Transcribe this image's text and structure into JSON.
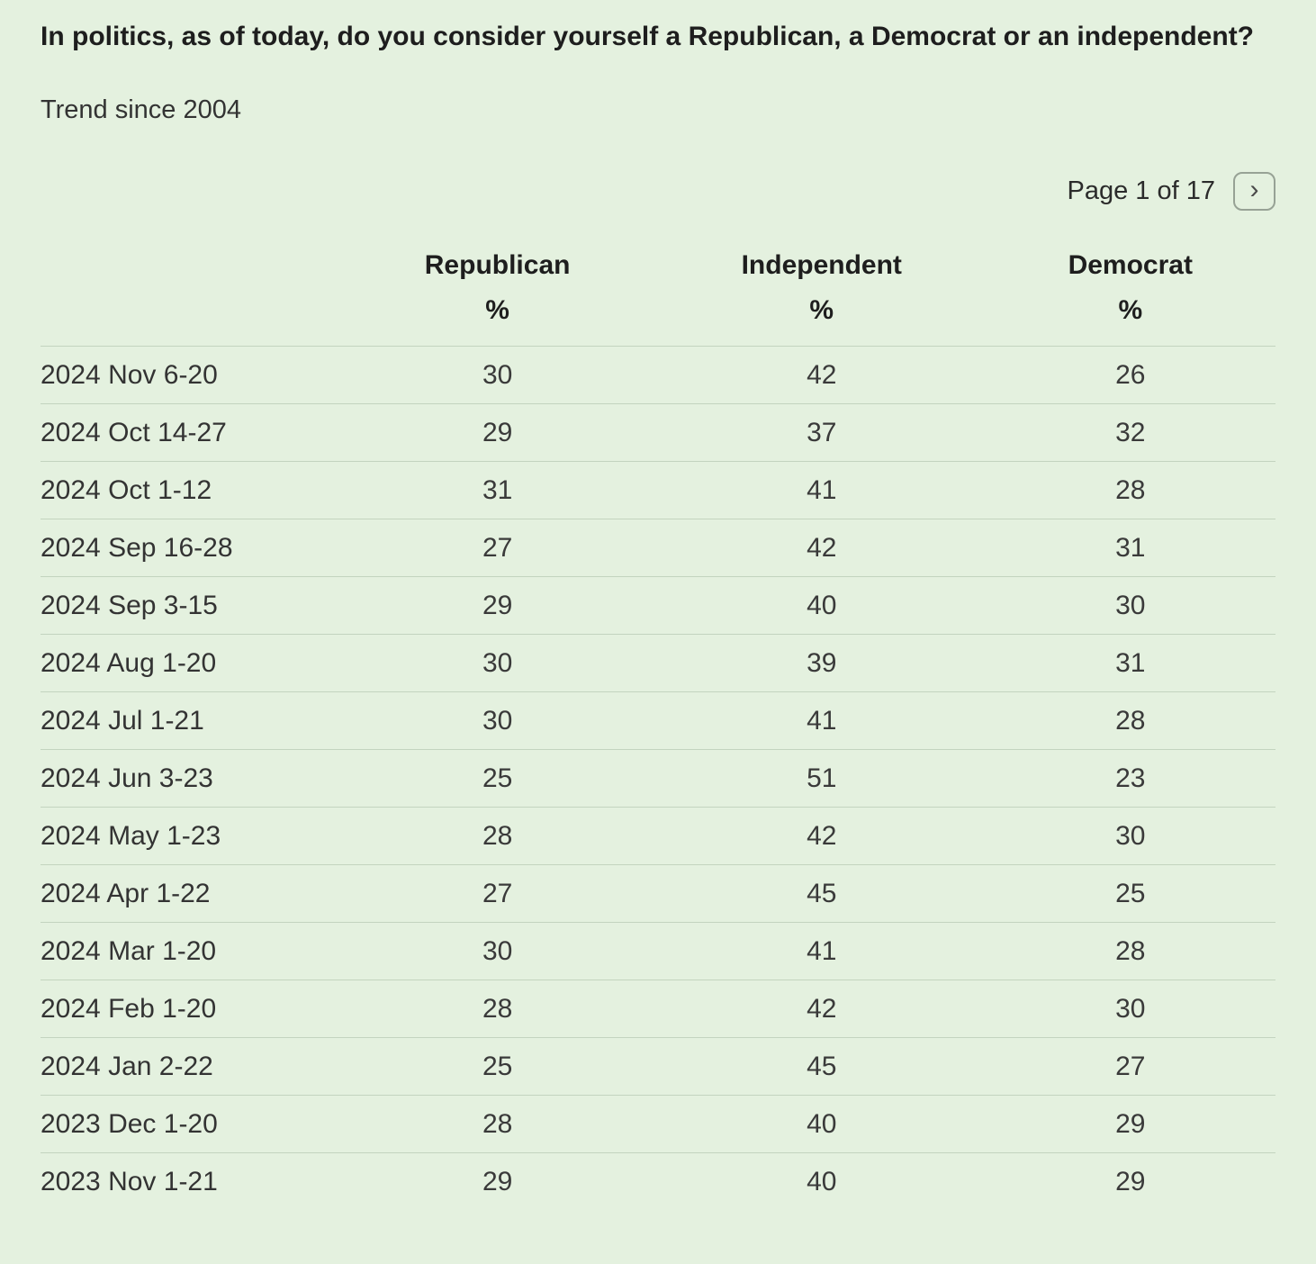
{
  "header": {
    "title": "In politics, as of today, do you consider yourself a Republican, a Democrat or an independent?",
    "subtitle": "Trend since 2004"
  },
  "pagination": {
    "label": "Page 1 of 17",
    "next_icon": "›"
  },
  "colors": {
    "background": "#e4f1df",
    "divider": "#c3d4bf",
    "text": "#2b2b2b"
  },
  "chart_data": {
    "type": "table",
    "title": "In politics, as of today, do you consider yourself a Republican, a Democrat or an independent?",
    "subtitle": "Trend since 2004",
    "columns": [
      "",
      "Republican",
      "Independent",
      "Democrat"
    ],
    "units": [
      "",
      "%",
      "%",
      "%"
    ],
    "rows": [
      {
        "date": "2024 Nov 6-20",
        "republican": 30,
        "independent": 42,
        "democrat": 26
      },
      {
        "date": "2024 Oct 14-27",
        "republican": 29,
        "independent": 37,
        "democrat": 32
      },
      {
        "date": "2024 Oct 1-12",
        "republican": 31,
        "independent": 41,
        "democrat": 28
      },
      {
        "date": "2024 Sep 16-28",
        "republican": 27,
        "independent": 42,
        "democrat": 31
      },
      {
        "date": "2024 Sep 3-15",
        "republican": 29,
        "independent": 40,
        "democrat": 30
      },
      {
        "date": "2024 Aug 1-20",
        "republican": 30,
        "independent": 39,
        "democrat": 31
      },
      {
        "date": "2024 Jul 1-21",
        "republican": 30,
        "independent": 41,
        "democrat": 28
      },
      {
        "date": "2024 Jun 3-23",
        "republican": 25,
        "independent": 51,
        "democrat": 23
      },
      {
        "date": "2024 May 1-23",
        "republican": 28,
        "independent": 42,
        "democrat": 30
      },
      {
        "date": "2024 Apr 1-22",
        "republican": 27,
        "independent": 45,
        "democrat": 25
      },
      {
        "date": "2024 Mar 1-20",
        "republican": 30,
        "independent": 41,
        "democrat": 28
      },
      {
        "date": "2024 Feb 1-20",
        "republican": 28,
        "independent": 42,
        "democrat": 30
      },
      {
        "date": "2024 Jan 2-22",
        "republican": 25,
        "independent": 45,
        "democrat": 27
      },
      {
        "date": "2023 Dec 1-20",
        "republican": 28,
        "independent": 40,
        "democrat": 29
      },
      {
        "date": "2023 Nov 1-21",
        "republican": 29,
        "independent": 40,
        "democrat": 29
      }
    ]
  }
}
